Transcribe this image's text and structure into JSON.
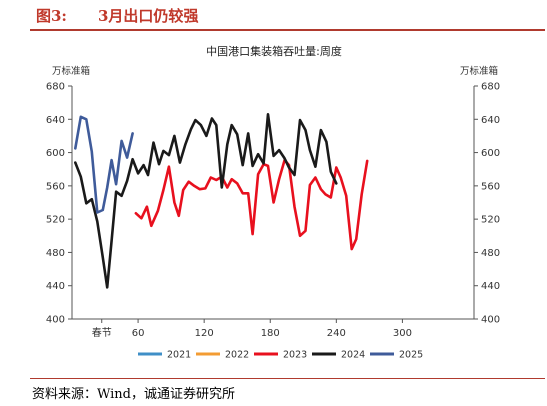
{
  "figure": {
    "number": "图3:",
    "title": "3月出口仍较强",
    "source": "资料来源：Wind，诚通证券研究所"
  },
  "chart_data": {
    "type": "line",
    "title": "中国港口集装箱吞吐量:周度",
    "ylabel_left": "万标准箱",
    "ylabel_right": "万标准箱",
    "xlim": [
      0,
      365
    ],
    "ylim": [
      400,
      680
    ],
    "y_ticks": [
      400,
      440,
      480,
      520,
      560,
      600,
      640,
      680
    ],
    "x_ticks": [
      {
        "value": 27,
        "label": "春节"
      },
      {
        "value": 60,
        "label": "60"
      },
      {
        "value": 120,
        "label": "120"
      },
      {
        "value": 180,
        "label": "180"
      },
      {
        "value": 240,
        "label": "240"
      },
      {
        "value": 300,
        "label": "300"
      }
    ],
    "legend_position": "bottom",
    "series": [
      {
        "name": "2021",
        "color": "#3f8fc7",
        "points": []
      },
      {
        "name": "2022",
        "color": "#f39c33",
        "points": []
      },
      {
        "name": "2023",
        "color": "#e8101e",
        "points": [
          [
            58,
            527
          ],
          [
            63,
            521
          ],
          [
            68,
            535
          ],
          [
            72,
            512
          ],
          [
            78,
            530
          ],
          [
            83,
            555
          ],
          [
            88,
            583
          ],
          [
            93,
            540
          ],
          [
            97,
            524
          ],
          [
            101,
            555
          ],
          [
            106,
            565
          ],
          [
            111,
            560
          ],
          [
            116,
            556
          ],
          [
            121,
            557
          ],
          [
            126,
            570
          ],
          [
            131,
            567
          ],
          [
            136,
            571
          ],
          [
            141,
            558
          ],
          [
            145,
            568
          ],
          [
            150,
            563
          ],
          [
            155,
            551
          ],
          [
            160,
            551
          ],
          [
            164,
            502
          ],
          [
            169,
            574
          ],
          [
            174,
            586
          ],
          [
            178,
            584
          ],
          [
            183,
            540
          ],
          [
            188,
            568
          ],
          [
            193,
            591
          ],
          [
            197,
            585
          ],
          [
            202,
            535
          ],
          [
            207,
            500
          ],
          [
            212,
            506
          ],
          [
            216,
            561
          ],
          [
            221,
            570
          ],
          [
            226,
            556
          ],
          [
            230,
            550
          ],
          [
            235,
            546
          ],
          [
            240,
            582
          ],
          [
            244,
            570
          ],
          [
            249,
            548
          ],
          [
            254,
            484
          ],
          [
            258,
            496
          ],
          [
            263,
            550
          ],
          [
            268,
            590
          ]
        ]
      },
      {
        "name": "2024",
        "color": "#1a1a1a",
        "points": [
          [
            3,
            588
          ],
          [
            8,
            571
          ],
          [
            13,
            539
          ],
          [
            18,
            544
          ],
          [
            23,
            517
          ],
          [
            28,
            474
          ],
          [
            32,
            438
          ],
          [
            36,
            494
          ],
          [
            40,
            553
          ],
          [
            45,
            548
          ],
          [
            50,
            566
          ],
          [
            55,
            592
          ],
          [
            60,
            575
          ],
          [
            65,
            585
          ],
          [
            69,
            573
          ],
          [
            74,
            612
          ],
          [
            79,
            586
          ],
          [
            83,
            602
          ],
          [
            88,
            597
          ],
          [
            93,
            620
          ],
          [
            98,
            588
          ],
          [
            103,
            610
          ],
          [
            108,
            628
          ],
          [
            112,
            639
          ],
          [
            117,
            633
          ],
          [
            122,
            620
          ],
          [
            127,
            641
          ],
          [
            131,
            633
          ],
          [
            136,
            558
          ],
          [
            141,
            610
          ],
          [
            145,
            633
          ],
          [
            150,
            622
          ],
          [
            155,
            585
          ],
          [
            160,
            623
          ],
          [
            164,
            584
          ],
          [
            169,
            598
          ],
          [
            174,
            587
          ],
          [
            178,
            646
          ],
          [
            183,
            596
          ],
          [
            188,
            603
          ],
          [
            193,
            593
          ],
          [
            197,
            582
          ],
          [
            202,
            573
          ],
          [
            207,
            639
          ],
          [
            212,
            627
          ],
          [
            216,
            603
          ],
          [
            221,
            583
          ],
          [
            226,
            627
          ],
          [
            231,
            613
          ],
          [
            235,
            577
          ],
          [
            240,
            563
          ]
        ]
      },
      {
        "name": "2025",
        "color": "#3f5b9a",
        "points": [
          [
            3,
            605
          ],
          [
            8,
            643
          ],
          [
            13,
            640
          ],
          [
            18,
            601
          ],
          [
            23,
            528
          ],
          [
            28,
            531
          ],
          [
            32,
            558
          ],
          [
            36,
            591
          ],
          [
            40,
            562
          ],
          [
            45,
            614
          ],
          [
            50,
            594
          ],
          [
            55,
            623
          ]
        ]
      }
    ]
  }
}
